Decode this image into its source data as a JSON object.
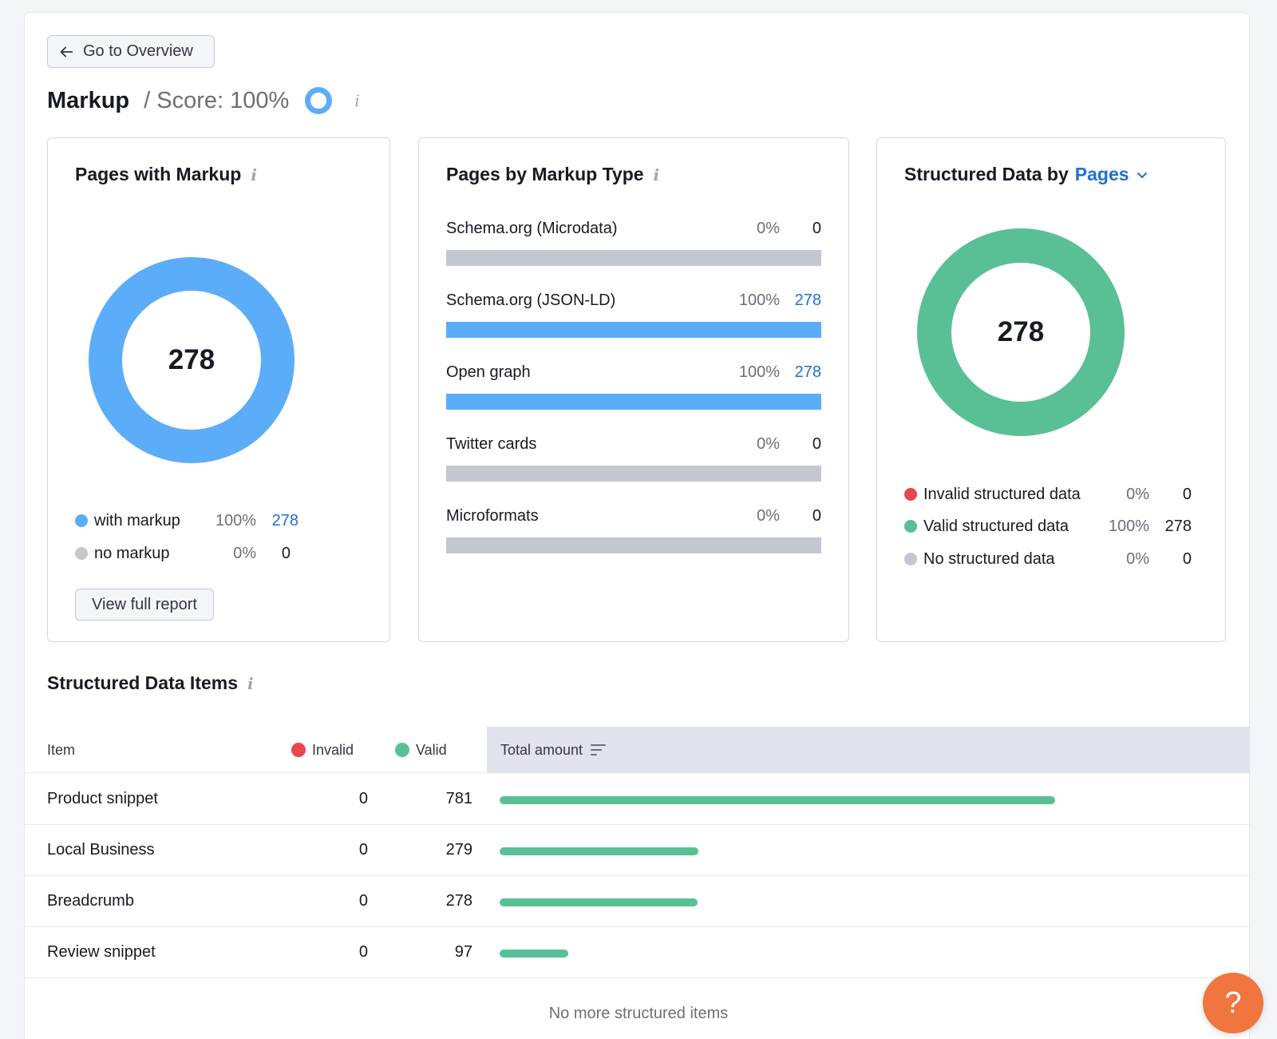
{
  "nav": {
    "back_label": "Go to Overview"
  },
  "header": {
    "title": "Markup",
    "score": "/ Score: 100%",
    "info": "i"
  },
  "colors": {
    "blue": "#5cadf9",
    "green": "#59c095",
    "red": "#e5484d",
    "gray": "#c4c7cf",
    "link": "#1f6fd6",
    "help": "#f0753e"
  },
  "pages_with_markup": {
    "title": "Pages with Markup",
    "total": "278",
    "legend": [
      {
        "label": "with markup",
        "pct": "100%",
        "count": "278",
        "color": "#5cadf9"
      },
      {
        "label": "no markup",
        "pct": "0%",
        "count": "0",
        "color": "#c4c7cf"
      }
    ],
    "button": "View full report"
  },
  "pages_by_type": {
    "title": "Pages by Markup Type",
    "rows": [
      {
        "label": "Schema.org (Microdata)",
        "pct": "0%",
        "count": "0",
        "fraction": 0
      },
      {
        "label": "Schema.org (JSON-LD)",
        "pct": "100%",
        "count": "278",
        "fraction": 1
      },
      {
        "label": "Open graph",
        "pct": "100%",
        "count": "278",
        "fraction": 1
      },
      {
        "label": "Twitter cards",
        "pct": "0%",
        "count": "0",
        "fraction": 0
      },
      {
        "label": "Microformats",
        "pct": "0%",
        "count": "0",
        "fraction": 0
      }
    ]
  },
  "structured_data": {
    "title_prefix": "Structured Data by",
    "dropdown": "Pages",
    "total": "278",
    "legend": [
      {
        "label": "Invalid structured data",
        "pct": "0%",
        "count": "0",
        "color": "#e5484d"
      },
      {
        "label": "Valid structured data",
        "pct": "100%",
        "count": "278",
        "color": "#59c095"
      },
      {
        "label": "No structured data",
        "pct": "0%",
        "count": "0",
        "color": "#c4c7cf"
      }
    ]
  },
  "items": {
    "title": "Structured Data Items",
    "headers": {
      "item": "Item",
      "invalid": "Invalid",
      "valid": "Valid",
      "total": "Total amount"
    },
    "rows": [
      {
        "name": "Product snippet",
        "invalid": "0",
        "valid": "781",
        "total": 781
      },
      {
        "name": "Local Business",
        "invalid": "0",
        "valid": "279",
        "total": 279
      },
      {
        "name": "Breadcrumb",
        "invalid": "0",
        "valid": "278",
        "total": 278
      },
      {
        "name": "Review snippet",
        "invalid": "0",
        "valid": "97",
        "total": 97
      }
    ],
    "footer": "No more structured items"
  },
  "help": {
    "label": "?"
  }
}
